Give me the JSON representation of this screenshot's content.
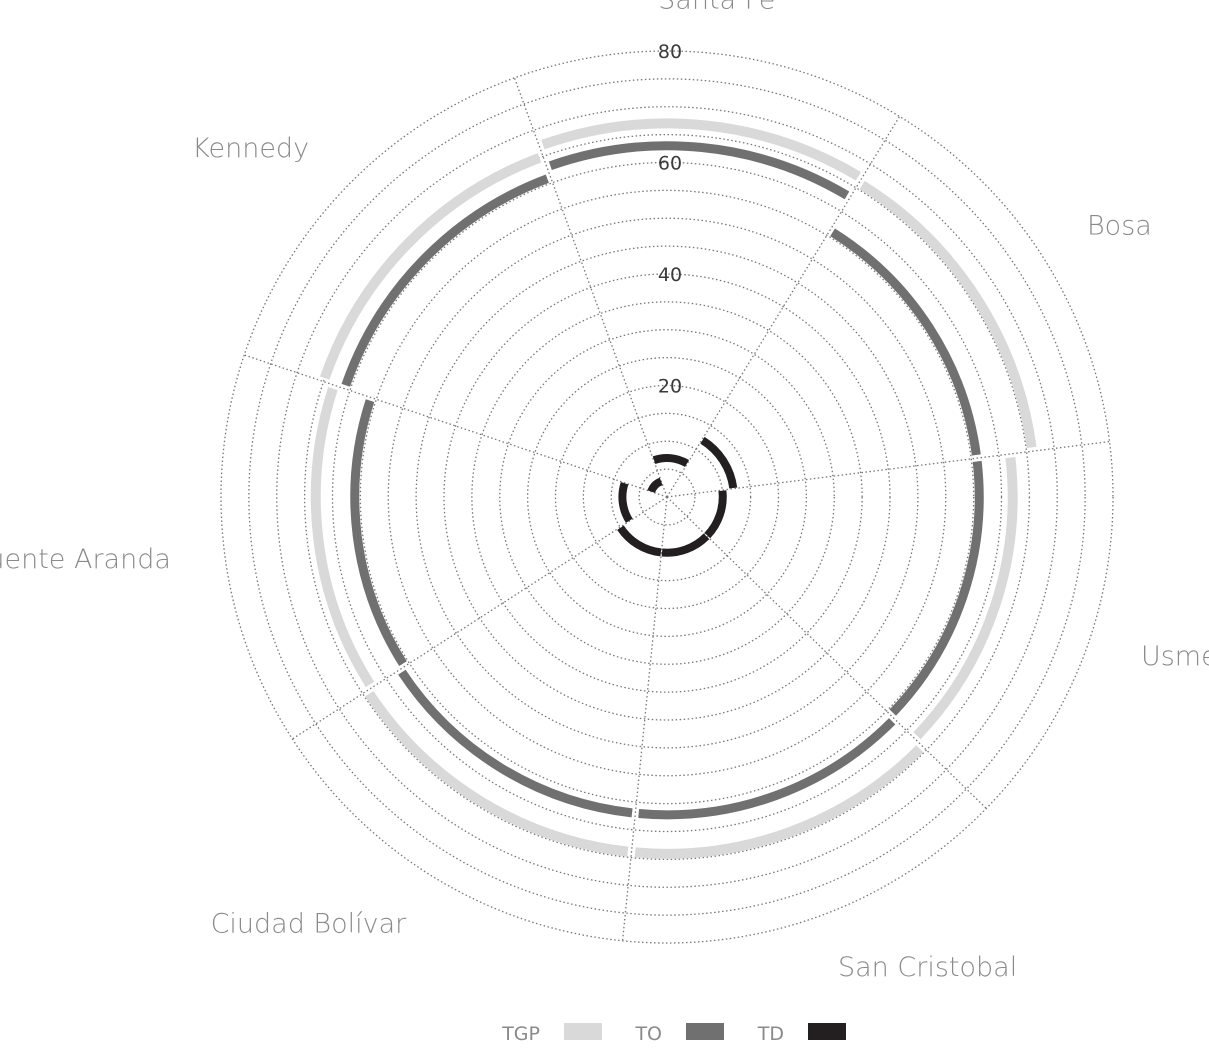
{
  "chart_data": {
    "type": "radial-bar",
    "title": "",
    "categories": [
      "Santa Fe",
      "Bosa",
      "Usme",
      "San Cristobal",
      "Ciudad Bolívar",
      "Puente Aranda",
      "Kennedy"
    ],
    "series": [
      {
        "name": "TGP",
        "color": "#d9d9d9",
        "values": [
          67,
          66,
          62,
          64,
          64,
          63,
          65
        ]
      },
      {
        "name": "TO",
        "color": "#707070",
        "values": [
          63,
          56,
          56,
          57,
          57,
          56,
          61
        ]
      },
      {
        "name": "TD",
        "color": "#231f20",
        "values": [
          7,
          12,
          10,
          10,
          10,
          8,
          3
        ]
      }
    ],
    "radial_ticks": [
      20,
      40,
      60,
      80
    ],
    "rmax": 80,
    "grid_circles": 16,
    "grid": true,
    "legend_position": "bottom-center"
  },
  "legend": {
    "items": [
      {
        "label": "TGP",
        "color": "#d9d9d9"
      },
      {
        "label": "TO",
        "color": "#707070"
      },
      {
        "label": "TD",
        "color": "#231f20"
      }
    ]
  }
}
